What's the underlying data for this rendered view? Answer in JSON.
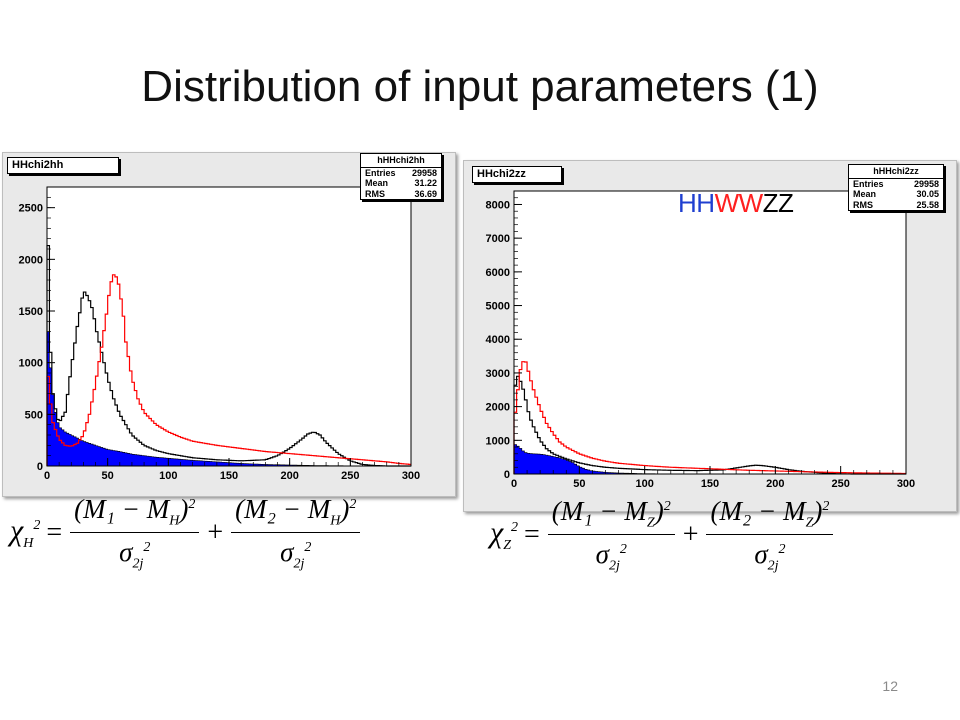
{
  "slide": {
    "title": "Distribution of input parameters (1)",
    "page_number": "12"
  },
  "colors": {
    "frame_bg": "#e9e9e9",
    "plot_bg": "#ffffff",
    "fill_blue": "#0000ff",
    "line_black": "#000000",
    "line_red": "#ff0000"
  },
  "left_panel": {
    "hist_name": "HHchi2hh",
    "stats": {
      "title": "hHHchi2hh",
      "rows": [
        {
          "label": "Entries",
          "value": "29958"
        },
        {
          "label": "Mean",
          "value": "31.22"
        },
        {
          "label": "RMS",
          "value": "36.69"
        }
      ]
    },
    "formula": {
      "chi": "χ",
      "chi_sub": "H",
      "chi_sup": "2",
      "equals": "=",
      "plus": "+",
      "num1": "(M₁ − M",
      "num1_sub": "H",
      "num1_close": ")",
      "num2": "(M₂ − M",
      "num2_sub": "H",
      "num2_close": ")",
      "pow": "2",
      "den": "σ",
      "den_sub": "2j",
      "den_sup": "2"
    }
  },
  "right_panel": {
    "hist_name": "HHchi2zz",
    "stats": {
      "title": "hHHchi2zz",
      "rows": [
        {
          "label": "Entries",
          "value": "29958"
        },
        {
          "label": "Mean",
          "value": "30.05"
        },
        {
          "label": "RMS",
          "value": "25.58"
        }
      ]
    },
    "legend": [
      {
        "text": "HH",
        "color": "#1f3fd0"
      },
      {
        "text": "WW",
        "color": "#ff2020"
      },
      {
        "text": "ZZ",
        "color": "#000000"
      }
    ],
    "formula": {
      "chi": "χ",
      "chi_sub": "Z",
      "chi_sup": "2",
      "equals": "=",
      "plus": "+",
      "num1": "(M₁ − M",
      "num1_sub": "Z",
      "num1_close": ")",
      "num2": "(M₂ − M",
      "num2_sub": "Z",
      "num2_close": ")",
      "pow": "2",
      "den": "σ",
      "den_sub": "2j",
      "den_sup": "2"
    }
  },
  "chart_data": [
    {
      "type": "area",
      "title": "",
      "xlabel": "",
      "ylabel": "",
      "xlim": [
        0,
        300
      ],
      "ylim": [
        0,
        2700
      ],
      "x_ticks": [
        0,
        50,
        100,
        150,
        200,
        250,
        300
      ],
      "y_ticks": [
        0,
        500,
        1000,
        1500,
        2000,
        2500
      ],
      "grid": false,
      "series": [
        {
          "style": "filled",
          "color": "#0000ff",
          "x": [
            0,
            2,
            4,
            6,
            8,
            10,
            15,
            20,
            25,
            30,
            35,
            40,
            45,
            50,
            60,
            70,
            80,
            90,
            100,
            120,
            140,
            160,
            180,
            200,
            220,
            250,
            300
          ],
          "y": [
            1500,
            1100,
            800,
            580,
            460,
            380,
            330,
            300,
            270,
            240,
            220,
            200,
            180,
            160,
            140,
            115,
            100,
            85,
            75,
            55,
            40,
            25,
            15,
            10,
            5,
            2,
            0
          ]
        },
        {
          "style": "line",
          "color": "#000000",
          "x": [
            0,
            3,
            5,
            8,
            10,
            15,
            20,
            25,
            28,
            30,
            33,
            35,
            38,
            40,
            45,
            50,
            55,
            60,
            70,
            80,
            90,
            100,
            120,
            140,
            160,
            180,
            190,
            200,
            210,
            215,
            220,
            225,
            230,
            240,
            250,
            260,
            270,
            280
          ],
          "y": [
            2650,
            1100,
            700,
            480,
            420,
            520,
            950,
            1350,
            1550,
            1700,
            1650,
            1600,
            1500,
            1350,
            1100,
            850,
            650,
            500,
            300,
            200,
            150,
            120,
            80,
            60,
            50,
            60,
            100,
            170,
            260,
            310,
            330,
            300,
            230,
            120,
            50,
            15,
            5,
            0
          ]
        },
        {
          "style": "line",
          "color": "#ff0000",
          "x": [
            0,
            3,
            5,
            8,
            10,
            15,
            20,
            25,
            30,
            35,
            40,
            45,
            50,
            52,
            55,
            58,
            60,
            63,
            65,
            70,
            75,
            80,
            90,
            100,
            110,
            120,
            140,
            160,
            180,
            200,
            220,
            240,
            260,
            280,
            290,
            300
          ],
          "y": [
            1000,
            600,
            420,
            320,
            260,
            200,
            190,
            220,
            300,
            500,
            800,
            1150,
            1550,
            1750,
            1850,
            1820,
            1700,
            1450,
            1200,
            850,
            650,
            520,
            400,
            330,
            280,
            240,
            200,
            170,
            140,
            120,
            100,
            80,
            60,
            40,
            25,
            15
          ]
        }
      ]
    },
    {
      "type": "area",
      "title": "",
      "xlabel": "",
      "ylabel": "",
      "xlim": [
        0,
        300
      ],
      "ylim": [
        0,
        8400
      ],
      "x_ticks": [
        0,
        50,
        100,
        150,
        200,
        250,
        300
      ],
      "y_ticks": [
        0,
        1000,
        2000,
        3000,
        4000,
        5000,
        6000,
        7000,
        8000
      ],
      "grid": false,
      "series": [
        {
          "style": "filled",
          "color": "#0000ff",
          "x": [
            0,
            2,
            4,
            6,
            8,
            10,
            15,
            20,
            25,
            30,
            35,
            40,
            45,
            50,
            55,
            60,
            70,
            80,
            90,
            100,
            120,
            150,
            200,
            250,
            300
          ],
          "y": [
            900,
            850,
            800,
            720,
            650,
            620,
            600,
            590,
            560,
            520,
            480,
            420,
            340,
            220,
            140,
            90,
            50,
            30,
            20,
            10,
            5,
            2,
            0,
            0,
            0
          ]
        },
        {
          "style": "line",
          "color": "#000000",
          "x": [
            0,
            3,
            5,
            8,
            10,
            12,
            15,
            20,
            25,
            30,
            40,
            50,
            60,
            70,
            80,
            100,
            120,
            140,
            160,
            170,
            180,
            185,
            190,
            200,
            210,
            220,
            240,
            250,
            260
          ],
          "y": [
            2500,
            2900,
            2750,
            2400,
            2000,
            1700,
            1400,
            1000,
            750,
            600,
            450,
            330,
            250,
            200,
            170,
            130,
            110,
            100,
            120,
            180,
            240,
            260,
            250,
            200,
            130,
            80,
            20,
            5,
            0
          ]
        },
        {
          "style": "line",
          "color": "#ff0000",
          "x": [
            0,
            3,
            5,
            8,
            10,
            12,
            15,
            20,
            25,
            30,
            35,
            40,
            50,
            60,
            70,
            80,
            100,
            120,
            140,
            160,
            180,
            200,
            220,
            240,
            260,
            280,
            300
          ],
          "y": [
            1500,
            2500,
            3100,
            3450,
            3200,
            2900,
            2500,
            1950,
            1500,
            1200,
            950,
            800,
            600,
            470,
            380,
            320,
            250,
            200,
            170,
            140,
            110,
            90,
            70,
            50,
            35,
            25,
            15
          ]
        }
      ]
    }
  ]
}
